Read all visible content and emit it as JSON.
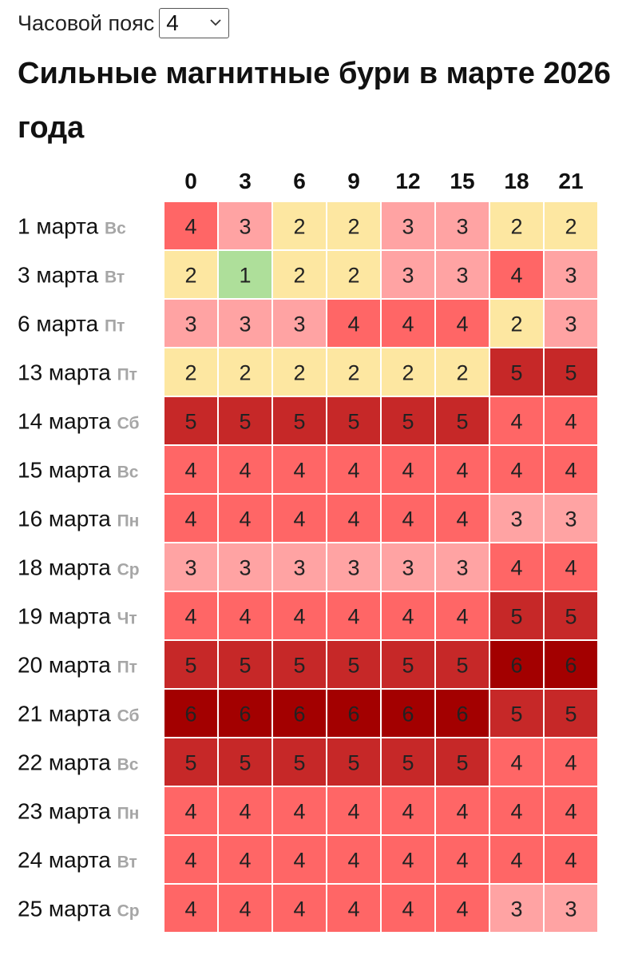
{
  "timezone": {
    "label": "Часовой пояс",
    "value": "4"
  },
  "title": "Сильные магнитные бури в марте 2026 года",
  "colors": {
    "1": "#aedf9a",
    "2": "#fde7a1",
    "3": "#ffa3a3",
    "4": "#ff6666",
    "5": "#c62828",
    "6": "#a30000"
  },
  "chart_data": {
    "type": "heatmap",
    "columns": [
      "0",
      "3",
      "6",
      "9",
      "12",
      "15",
      "18",
      "21"
    ],
    "rows": [
      {
        "date": "1 марта",
        "day": "Вс",
        "values": [
          4,
          3,
          2,
          2,
          3,
          3,
          2,
          2
        ]
      },
      {
        "date": "3 марта",
        "day": "Вт",
        "values": [
          2,
          1,
          2,
          2,
          3,
          3,
          4,
          3
        ]
      },
      {
        "date": "6 марта",
        "day": "Пт",
        "values": [
          3,
          3,
          3,
          4,
          4,
          4,
          2,
          3
        ]
      },
      {
        "date": "13 марта",
        "day": "Пт",
        "values": [
          2,
          2,
          2,
          2,
          2,
          2,
          5,
          5
        ]
      },
      {
        "date": "14 марта",
        "day": "Сб",
        "values": [
          5,
          5,
          5,
          5,
          5,
          5,
          4,
          4
        ]
      },
      {
        "date": "15 марта",
        "day": "Вс",
        "values": [
          4,
          4,
          4,
          4,
          4,
          4,
          4,
          4
        ]
      },
      {
        "date": "16 марта",
        "day": "Пн",
        "values": [
          4,
          4,
          4,
          4,
          4,
          4,
          3,
          3
        ]
      },
      {
        "date": "18 марта",
        "day": "Ср",
        "values": [
          3,
          3,
          3,
          3,
          3,
          3,
          4,
          4
        ]
      },
      {
        "date": "19 марта",
        "day": "Чт",
        "values": [
          4,
          4,
          4,
          4,
          4,
          4,
          5,
          5
        ]
      },
      {
        "date": "20 марта",
        "day": "Пт",
        "values": [
          5,
          5,
          5,
          5,
          5,
          5,
          6,
          6
        ]
      },
      {
        "date": "21 марта",
        "day": "Сб",
        "values": [
          6,
          6,
          6,
          6,
          6,
          6,
          5,
          5
        ]
      },
      {
        "date": "22 марта",
        "day": "Вс",
        "values": [
          5,
          5,
          5,
          5,
          5,
          5,
          4,
          4
        ]
      },
      {
        "date": "23 марта",
        "day": "Пн",
        "values": [
          4,
          4,
          4,
          4,
          4,
          4,
          4,
          4
        ]
      },
      {
        "date": "24 марта",
        "day": "Вт",
        "values": [
          4,
          4,
          4,
          4,
          4,
          4,
          4,
          4
        ]
      },
      {
        "date": "25 марта",
        "day": "Ср",
        "values": [
          4,
          4,
          4,
          4,
          4,
          4,
          3,
          3
        ]
      }
    ]
  }
}
